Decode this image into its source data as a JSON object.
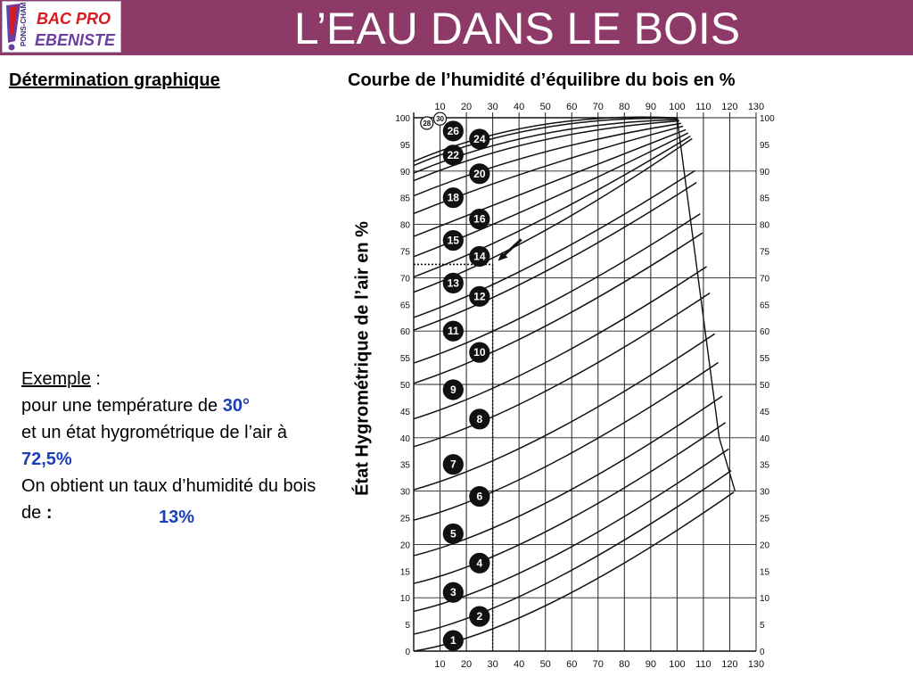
{
  "header": {
    "title": "L’EAU DANS LE BOIS",
    "logo": {
      "exclaim": "!",
      "line1": "BAC PRO",
      "line2": "EBENISTE",
      "side_text": "PONS-CHAMPS"
    }
  },
  "left_heading": "Détermination graphique",
  "right_heading": "Courbe de l’humidité d’équilibre du bois en %",
  "example": {
    "label": "Exemple",
    "colon": " :",
    "line1": "pour une température de ",
    "temp": "30°",
    "line2": "et un état hygrométrique de l’air à ",
    "rh": "72,5%",
    "line3": "On obtient un taux d’humidité du bois de ",
    "colon2": ":",
    "answer": "13%"
  },
  "chart_data": {
    "type": "line",
    "title": "Courbe de l’humidité d’équilibre du bois en %",
    "ylabel": "État Hygrométrique de l’air en %",
    "xlabel": "",
    "x_ticks": [
      10,
      20,
      30,
      40,
      50,
      60,
      70,
      80,
      90,
      100,
      110,
      120,
      130
    ],
    "y_ticks": [
      0,
      5,
      10,
      15,
      20,
      25,
      30,
      35,
      40,
      45,
      50,
      55,
      60,
      65,
      70,
      75,
      80,
      85,
      90,
      95,
      100
    ],
    "xlim": [
      0,
      130
    ],
    "ylim": [
      0,
      100
    ],
    "grid": true,
    "curve_labels": [
      {
        "label": "1",
        "x": 15,
        "y": 2
      },
      {
        "label": "2",
        "x": 25,
        "y": 6.5
      },
      {
        "label": "3",
        "x": 15,
        "y": 11
      },
      {
        "label": "4",
        "x": 25,
        "y": 16.5
      },
      {
        "label": "5",
        "x": 15,
        "y": 22
      },
      {
        "label": "6",
        "x": 25,
        "y": 29
      },
      {
        "label": "7",
        "x": 15,
        "y": 35
      },
      {
        "label": "8",
        "x": 25,
        "y": 43.5
      },
      {
        "label": "9",
        "x": 15,
        "y": 49
      },
      {
        "label": "10",
        "x": 25,
        "y": 56
      },
      {
        "label": "11",
        "x": 15,
        "y": 60
      },
      {
        "label": "12",
        "x": 25,
        "y": 66.5
      },
      {
        "label": "13",
        "x": 15,
        "y": 69
      },
      {
        "label": "14",
        "x": 25,
        "y": 74
      },
      {
        "label": "15",
        "x": 15,
        "y": 77
      },
      {
        "label": "16",
        "x": 25,
        "y": 81
      },
      {
        "label": "18",
        "x": 15,
        "y": 85
      },
      {
        "label": "20",
        "x": 25,
        "y": 89.5
      },
      {
        "label": "22",
        "x": 15,
        "y": 93
      },
      {
        "label": "24",
        "x": 25,
        "y": 96
      },
      {
        "label": "26",
        "x": 15,
        "y": 97.5
      },
      {
        "label": "28",
        "x": 5,
        "y": 99
      },
      {
        "label": "30",
        "x": 10,
        "y": 99.8
      }
    ],
    "example_reading": {
      "temperature": 30,
      "humidity": 72.5,
      "result": 13
    }
  },
  "colors": {
    "header": "#8e3a68",
    "highlight": "#1b3fb5",
    "logo_purple": "#6c3ea0",
    "logo_red": "#d71920"
  }
}
